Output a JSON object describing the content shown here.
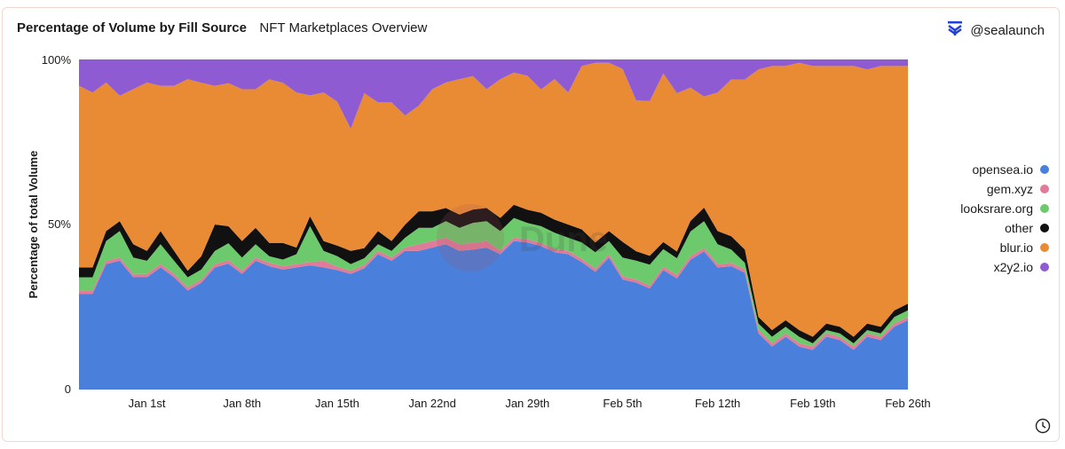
{
  "header": {
    "title": "Percentage of Volume by Fill Source",
    "subtitle": "NFT Marketplaces Overview",
    "handle": "@sealaunch"
  },
  "icons": {
    "logo": "sealaunch-logo-icon",
    "clock": "clock-icon"
  },
  "watermark": "Dune",
  "chart_data": {
    "type": "area",
    "stacked": true,
    "normalized_percent": true,
    "title": "Percentage of Volume by Fill Source",
    "ylabel": "Percentage of total Volume",
    "xlabel": "",
    "ylim": [
      0,
      100
    ],
    "yticks": [
      {
        "value": 0,
        "label": "0"
      },
      {
        "value": 50,
        "label": "50%"
      },
      {
        "value": 100,
        "label": "100%"
      }
    ],
    "x_start": "Dec 27",
    "xticks": [
      {
        "index": 5,
        "label": "Jan 1st"
      },
      {
        "index": 12,
        "label": "Jan 8th"
      },
      {
        "index": 19,
        "label": "Jan 15th"
      },
      {
        "index": 26,
        "label": "Jan 22nd"
      },
      {
        "index": 33,
        "label": "Jan 29th"
      },
      {
        "index": 40,
        "label": "Feb 5th"
      },
      {
        "index": 47,
        "label": "Feb 12th"
      },
      {
        "index": 54,
        "label": "Feb 19th"
      },
      {
        "index": 61,
        "label": "Feb 26th"
      }
    ],
    "legend_position": "right",
    "series": [
      {
        "name": "opensea.io",
        "color": "#4a7fdb",
        "values": [
          29,
          29,
          38,
          39,
          34,
          34,
          37,
          34,
          30,
          32,
          37,
          37,
          35,
          39,
          37,
          36,
          37,
          38,
          37,
          34,
          35,
          36,
          41,
          39,
          42,
          42,
          43,
          44,
          42,
          42,
          43,
          41,
          45,
          45,
          43,
          42,
          41,
          39,
          36,
          40,
          35,
          34,
          34,
          34,
          33,
          37,
          41,
          37,
          37,
          35,
          17,
          13,
          16,
          13,
          12,
          16,
          15,
          12,
          16,
          15,
          19,
          21
        ]
      },
      {
        "name": "gem.xyz",
        "color": "#e07b9a",
        "values": [
          1,
          1,
          1,
          1,
          1,
          1,
          1,
          1,
          1,
          1,
          1,
          1,
          1,
          1,
          1,
          1,
          1,
          1,
          2,
          1,
          1,
          1,
          1,
          1,
          1,
          2,
          2,
          2,
          2,
          2,
          2,
          1,
          1,
          1,
          1,
          1,
          1,
          1,
          1,
          1,
          1,
          1,
          1,
          1,
          1,
          1,
          1,
          1,
          1,
          1,
          1,
          1,
          1,
          1,
          1,
          1,
          1,
          1,
          1,
          1,
          1,
          1
        ]
      },
      {
        "name": "looksrare.org",
        "color": "#6cc96c",
        "values": [
          4,
          4,
          6,
          8,
          5,
          4,
          6,
          4,
          3,
          3,
          4,
          5,
          4,
          4,
          2,
          2,
          3,
          11,
          3,
          3,
          2,
          2,
          2,
          2,
          3,
          5,
          4,
          5,
          5,
          6,
          6,
          6,
          6,
          5,
          5,
          5,
          4,
          5,
          5,
          4,
          6,
          6,
          7,
          5,
          5,
          7,
          8,
          6,
          4,
          2,
          2,
          2,
          2,
          2,
          1,
          1,
          1,
          1,
          1,
          1,
          2,
          2
        ]
      },
      {
        "name": "other",
        "color": "#111111",
        "values": [
          3,
          3,
          3,
          3,
          4,
          3,
          4,
          3,
          2,
          4,
          8,
          5,
          5,
          5,
          4,
          5,
          2,
          3,
          3,
          3,
          4,
          3,
          4,
          3,
          4,
          5,
          5,
          4,
          4,
          4,
          4,
          4,
          4,
          4,
          4,
          4,
          4,
          4,
          3,
          3,
          5,
          3,
          3,
          2,
          2,
          3,
          4,
          4,
          4,
          4,
          2,
          2,
          2,
          2,
          2,
          2,
          2,
          2,
          2,
          2,
          2,
          2
        ]
      },
      {
        "name": "blur.io",
        "color": "#e98b35",
        "values": [
          55,
          53,
          45,
          38,
          47,
          51,
          44,
          50,
          58,
          52,
          42,
          42,
          46,
          42,
          49,
          48,
          47,
          37,
          45,
          41,
          37,
          46,
          39,
          42,
          33,
          32,
          37,
          38,
          41,
          40,
          36,
          42,
          40,
          41,
          37,
          43,
          40,
          50,
          55,
          51,
          55,
          48,
          52,
          48,
          47,
          38,
          33,
          42,
          47,
          51,
          75,
          80,
          77,
          81,
          82,
          78,
          79,
          82,
          77,
          79,
          74,
          72
        ]
      },
      {
        "name": "x2y2.io",
        "color": "#8f5bd3",
        "values": [
          8,
          10,
          7,
          11,
          9,
          7,
          8,
          8,
          6,
          7,
          8,
          7,
          9,
          9,
          6,
          7,
          10,
          11,
          10,
          12,
          21,
          10,
          13,
          13,
          17,
          14,
          9,
          7,
          6,
          5,
          9,
          6,
          4,
          5,
          9,
          6,
          10,
          2,
          1,
          1,
          3,
          13,
          14,
          4,
          10,
          8,
          11,
          10,
          6,
          6,
          3,
          2,
          2,
          1,
          2,
          2,
          2,
          2,
          3,
          2,
          2,
          2
        ]
      }
    ]
  }
}
